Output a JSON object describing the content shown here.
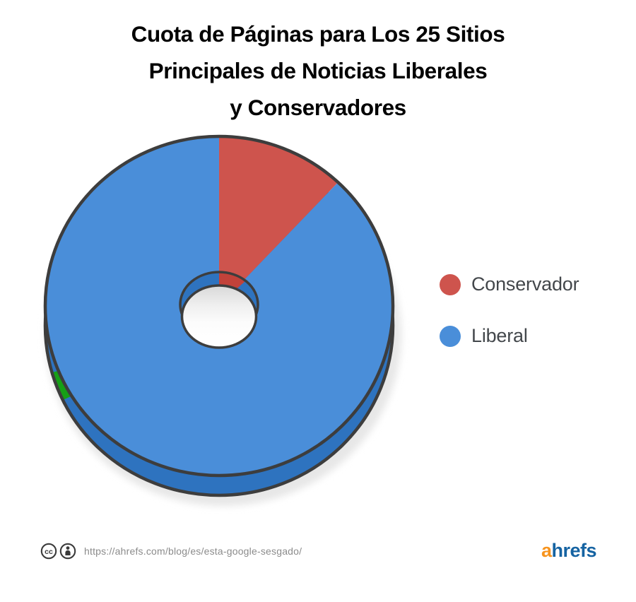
{
  "header": {
    "title_line1": "Cuota de Páginas para Los 25 Sitios",
    "title_line2": "Principales de Noticias Liberales",
    "title_line3": "y Conservadores"
  },
  "chart_data": {
    "type": "pie",
    "style": "3d-donut",
    "title": "Cuota de Páginas para Los 25 Sitios Principales de Noticias Liberales y Conservadores",
    "start_angle_deg": 0,
    "direction": "clockwise",
    "slices": [
      {
        "label": "Conservador",
        "value_pct": 12,
        "color": "#CE544D",
        "side_color": "#C2423A"
      },
      {
        "label": "Liberal",
        "value_pct": 88,
        "color": "#4A8ED9",
        "side_color": "#2E73BF"
      }
    ],
    "outline_color": "#3D3D3D",
    "shadow_color": "#E7E7E7",
    "edge_artifact": {
      "color": "#16A016",
      "start_deg": 244,
      "end_deg": 254
    },
    "legend_position": "right",
    "data_labels_shown": false
  },
  "legend": {
    "items": [
      {
        "label": "Conservador",
        "color": "#CE544D"
      },
      {
        "label": "Liberal",
        "color": "#4A8ED9"
      }
    ]
  },
  "footer": {
    "license_icons": [
      "cc-license-icon",
      "cc-attribution-icon"
    ],
    "icon_color": "#3A3A3A",
    "source_url": "https://ahrefs.com/blog/es/esta-google-sesgado/"
  },
  "brand": {
    "logo_a": "a",
    "logo_rest": "hrefs",
    "logo_a_color": "#F7941E",
    "logo_rest_color": "#1563A2"
  }
}
